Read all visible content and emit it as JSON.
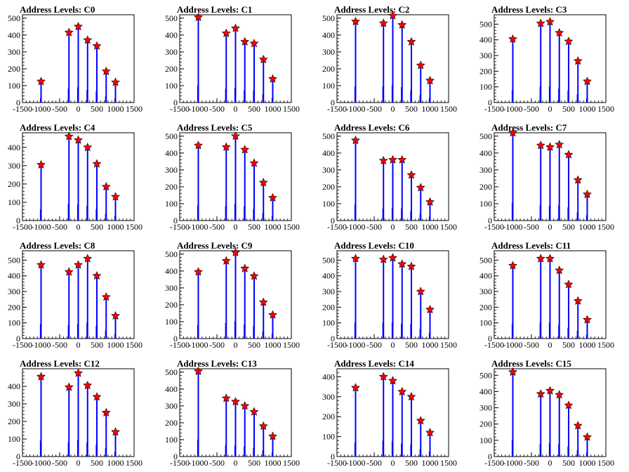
{
  "chart_data": [
    {
      "title": "Address Levels: C0",
      "type": "bar",
      "x_ticks": [
        "-1500",
        "-1000",
        "-500",
        "0",
        "500",
        "1000",
        "1500"
      ],
      "xlim": [
        -1500,
        1500
      ],
      "y_ticks": [
        "0",
        "100",
        "200",
        "300",
        "400",
        "500"
      ],
      "ylim": [
        0,
        520
      ],
      "peaks": [
        {
          "x": -1000,
          "y": 125
        },
        {
          "x": -250,
          "y": 415
        },
        {
          "x": 0,
          "y": 450
        },
        {
          "x": 250,
          "y": 370
        },
        {
          "x": 500,
          "y": 335
        },
        {
          "x": 750,
          "y": 185
        },
        {
          "x": 1000,
          "y": 120
        }
      ]
    },
    {
      "title": "Address Levels: C1",
      "type": "bar",
      "x_ticks": [
        "-1500",
        "-1000",
        "-500",
        "0",
        "500",
        "1000",
        "1500"
      ],
      "xlim": [
        -1500,
        1500
      ],
      "y_ticks": [
        "0",
        "100",
        "200",
        "300",
        "400",
        "500"
      ],
      "ylim": [
        0,
        520
      ],
      "peaks": [
        {
          "x": -1000,
          "y": 505
        },
        {
          "x": -250,
          "y": 410
        },
        {
          "x": 0,
          "y": 440
        },
        {
          "x": 250,
          "y": 360
        },
        {
          "x": 500,
          "y": 350
        },
        {
          "x": 750,
          "y": 255
        },
        {
          "x": 1000,
          "y": 140
        }
      ]
    },
    {
      "title": "Address Levels: C2",
      "type": "bar",
      "x_ticks": [
        "-1500",
        "-1000",
        "-500",
        "0",
        "500",
        "1000",
        "1500"
      ],
      "xlim": [
        -1500,
        1500
      ],
      "y_ticks": [
        "0",
        "100",
        "200",
        "300",
        "400",
        "500"
      ],
      "ylim": [
        0,
        520
      ],
      "peaks": [
        {
          "x": -1000,
          "y": 480
        },
        {
          "x": -250,
          "y": 470
        },
        {
          "x": 0,
          "y": 515
        },
        {
          "x": 250,
          "y": 460
        },
        {
          "x": 500,
          "y": 360
        },
        {
          "x": 750,
          "y": 220
        },
        {
          "x": 1000,
          "y": 130
        }
      ]
    },
    {
      "title": "Address Levels: C3",
      "type": "bar",
      "x_ticks": [
        "-1500",
        "-1000",
        "-500",
        "0",
        "500",
        "1000",
        "1500"
      ],
      "xlim": [
        -1500,
        1500
      ],
      "y_ticks": [
        "0",
        "100",
        "200",
        "300",
        "400",
        "500"
      ],
      "ylim": [
        0,
        560
      ],
      "peaks": [
        {
          "x": -1000,
          "y": 405
        },
        {
          "x": -250,
          "y": 505
        },
        {
          "x": 0,
          "y": 515
        },
        {
          "x": 250,
          "y": 445
        },
        {
          "x": 500,
          "y": 390
        },
        {
          "x": 750,
          "y": 265
        },
        {
          "x": 1000,
          "y": 135
        }
      ]
    },
    {
      "title": "Address Levels: C4",
      "type": "bar",
      "x_ticks": [
        "-1500",
        "-1000",
        "-500",
        "0",
        "500",
        "1000",
        "1500"
      ],
      "xlim": [
        -1500,
        1500
      ],
      "y_ticks": [
        "0",
        "100",
        "200",
        "300",
        "400"
      ],
      "ylim": [
        0,
        480
      ],
      "peaks": [
        {
          "x": -1000,
          "y": 305
        },
        {
          "x": -250,
          "y": 460
        },
        {
          "x": 0,
          "y": 440
        },
        {
          "x": 250,
          "y": 400
        },
        {
          "x": 500,
          "y": 310
        },
        {
          "x": 750,
          "y": 185
        },
        {
          "x": 1000,
          "y": 130
        }
      ]
    },
    {
      "title": "Address Levels: C5",
      "type": "bar",
      "x_ticks": [
        "-1500",
        "-1000",
        "-500",
        "0",
        "500",
        "1000",
        "1500"
      ],
      "xlim": [
        -1500,
        1500
      ],
      "y_ticks": [
        "0",
        "100",
        "200",
        "300",
        "400",
        "500"
      ],
      "ylim": [
        0,
        520
      ],
      "peaks": [
        {
          "x": -1000,
          "y": 445
        },
        {
          "x": -250,
          "y": 435
        },
        {
          "x": 0,
          "y": 500
        },
        {
          "x": 250,
          "y": 420
        },
        {
          "x": 500,
          "y": 340
        },
        {
          "x": 750,
          "y": 225
        },
        {
          "x": 1000,
          "y": 135
        }
      ]
    },
    {
      "title": "Address Levels: C6",
      "type": "bar",
      "x_ticks": [
        "-1500",
        "-1000",
        "-500",
        "0",
        "500",
        "1000",
        "1500"
      ],
      "xlim": [
        -1500,
        1500
      ],
      "y_ticks": [
        "0",
        "100",
        "200",
        "300",
        "400",
        "500"
      ],
      "ylim": [
        0,
        520
      ],
      "peaks": [
        {
          "x": -1000,
          "y": 475
        },
        {
          "x": -250,
          "y": 355
        },
        {
          "x": 0,
          "y": 360
        },
        {
          "x": 250,
          "y": 360
        },
        {
          "x": 500,
          "y": 270
        },
        {
          "x": 750,
          "y": 195
        },
        {
          "x": 1000,
          "y": 110
        }
      ]
    },
    {
      "title": "Address Levels: C7",
      "type": "bar",
      "x_ticks": [
        "-1500",
        "-1000",
        "-500",
        "0",
        "500",
        "1000",
        "1500"
      ],
      "xlim": [
        -1500,
        1500
      ],
      "y_ticks": [
        "0",
        "100",
        "200",
        "300",
        "400",
        "500"
      ],
      "ylim": [
        0,
        520
      ],
      "peaks": [
        {
          "x": -1000,
          "y": 520
        },
        {
          "x": -250,
          "y": 445
        },
        {
          "x": 0,
          "y": 435
        },
        {
          "x": 250,
          "y": 450
        },
        {
          "x": 500,
          "y": 390
        },
        {
          "x": 750,
          "y": 240
        },
        {
          "x": 1000,
          "y": 155
        }
      ]
    },
    {
      "title": "Address Levels: C8",
      "type": "bar",
      "x_ticks": [
        "-1500",
        "-1000",
        "-500",
        "0",
        "500",
        "1000",
        "1500"
      ],
      "xlim": [
        -1500,
        1500
      ],
      "y_ticks": [
        "0",
        "100",
        "200",
        "300",
        "400",
        "500"
      ],
      "ylim": [
        0,
        560
      ],
      "peaks": [
        {
          "x": -1000,
          "y": 470
        },
        {
          "x": -250,
          "y": 425
        },
        {
          "x": 0,
          "y": 470
        },
        {
          "x": 250,
          "y": 510
        },
        {
          "x": 500,
          "y": 400
        },
        {
          "x": 750,
          "y": 265
        },
        {
          "x": 1000,
          "y": 145
        }
      ]
    },
    {
      "title": "Address Levels: C9",
      "type": "bar",
      "x_ticks": [
        "-1500",
        "-1000",
        "-500",
        "0",
        "500",
        "1000",
        "1500"
      ],
      "xlim": [
        -1500,
        1500
      ],
      "y_ticks": [
        "0",
        "100",
        "200",
        "300",
        "400",
        "500"
      ],
      "ylim": [
        0,
        520
      ],
      "peaks": [
        {
          "x": -1000,
          "y": 395
        },
        {
          "x": -250,
          "y": 460
        },
        {
          "x": 0,
          "y": 510
        },
        {
          "x": 250,
          "y": 415
        },
        {
          "x": 500,
          "y": 370
        },
        {
          "x": 750,
          "y": 215
        },
        {
          "x": 1000,
          "y": 140
        }
      ]
    },
    {
      "title": "Address Levels: C10",
      "type": "bar",
      "x_ticks": [
        "-1500",
        "-1000",
        "-500",
        "0",
        "500",
        "1000",
        "1500"
      ],
      "xlim": [
        -1500,
        1500
      ],
      "y_ticks": [
        "0",
        "100",
        "200",
        "300",
        "400",
        "500"
      ],
      "ylim": [
        0,
        560
      ],
      "peaks": [
        {
          "x": -1000,
          "y": 510
        },
        {
          "x": -250,
          "y": 505
        },
        {
          "x": 0,
          "y": 515
        },
        {
          "x": 250,
          "y": 475
        },
        {
          "x": 500,
          "y": 460
        },
        {
          "x": 750,
          "y": 300
        },
        {
          "x": 1000,
          "y": 185
        }
      ]
    },
    {
      "title": "Address Levels: C11",
      "type": "bar",
      "x_ticks": [
        "-1500",
        "-1000",
        "-500",
        "0",
        "500",
        "1000",
        "1500"
      ],
      "xlim": [
        -1500,
        1500
      ],
      "y_ticks": [
        "0",
        "100",
        "200",
        "300",
        "400",
        "500"
      ],
      "ylim": [
        0,
        560
      ],
      "peaks": [
        {
          "x": -1000,
          "y": 465
        },
        {
          "x": -250,
          "y": 510
        },
        {
          "x": 0,
          "y": 510
        },
        {
          "x": 250,
          "y": 435
        },
        {
          "x": 500,
          "y": 345
        },
        {
          "x": 750,
          "y": 240
        },
        {
          "x": 1000,
          "y": 120
        }
      ]
    },
    {
      "title": "Address Levels: C12",
      "type": "bar",
      "x_ticks": [
        "-1500",
        "-1000",
        "-500",
        "0",
        "500",
        "1000",
        "1500"
      ],
      "xlim": [
        -1500,
        1500
      ],
      "y_ticks": [
        "0",
        "100",
        "200",
        "300",
        "400"
      ],
      "ylim": [
        0,
        500
      ],
      "peaks": [
        {
          "x": -1000,
          "y": 455
        },
        {
          "x": -250,
          "y": 395
        },
        {
          "x": 0,
          "y": 475
        },
        {
          "x": 250,
          "y": 405
        },
        {
          "x": 500,
          "y": 340
        },
        {
          "x": 750,
          "y": 250
        },
        {
          "x": 1000,
          "y": 140
        }
      ]
    },
    {
      "title": "Address Levels: C13",
      "type": "bar",
      "x_ticks": [
        "-1500",
        "-1000",
        "-500",
        "0",
        "500",
        "1000",
        "1500"
      ],
      "xlim": [
        -1500,
        1500
      ],
      "y_ticks": [
        "0",
        "100",
        "200",
        "300",
        "400",
        "500"
      ],
      "ylim": [
        0,
        520
      ],
      "peaks": [
        {
          "x": -1000,
          "y": 505
        },
        {
          "x": -250,
          "y": 345
        },
        {
          "x": 0,
          "y": 325
        },
        {
          "x": 250,
          "y": 300
        },
        {
          "x": 500,
          "y": 265
        },
        {
          "x": 750,
          "y": 180
        },
        {
          "x": 1000,
          "y": 120
        }
      ]
    },
    {
      "title": "Address Levels: C14",
      "type": "bar",
      "x_ticks": [
        "-1500",
        "-1000",
        "-500",
        "0",
        "500",
        "1000",
        "1500"
      ],
      "xlim": [
        -1500,
        1500
      ],
      "y_ticks": [
        "0",
        "100",
        "200",
        "300",
        "400"
      ],
      "ylim": [
        0,
        440
      ],
      "peaks": [
        {
          "x": -1000,
          "y": 345
        },
        {
          "x": -250,
          "y": 400
        },
        {
          "x": 0,
          "y": 380
        },
        {
          "x": 250,
          "y": 325
        },
        {
          "x": 500,
          "y": 300
        },
        {
          "x": 750,
          "y": 180
        },
        {
          "x": 1000,
          "y": 120
        }
      ]
    },
    {
      "title": "Address Levels: C15",
      "type": "bar",
      "x_ticks": [
        "-1500",
        "-1000",
        "-500",
        "0",
        "500",
        "1000",
        "1500"
      ],
      "xlim": [
        -1500,
        1500
      ],
      "y_ticks": [
        "0",
        "100",
        "200",
        "300",
        "400",
        "500"
      ],
      "ylim": [
        0,
        540
      ],
      "peaks": [
        {
          "x": -1000,
          "y": 520
        },
        {
          "x": -250,
          "y": 385
        },
        {
          "x": 0,
          "y": 405
        },
        {
          "x": 250,
          "y": 380
        },
        {
          "x": 500,
          "y": 315
        },
        {
          "x": 750,
          "y": 190
        },
        {
          "x": 1000,
          "y": 120
        }
      ]
    }
  ],
  "colors": {
    "bars": "#0000ff",
    "markers": "#ff0000",
    "marker_outline": "#000000"
  }
}
